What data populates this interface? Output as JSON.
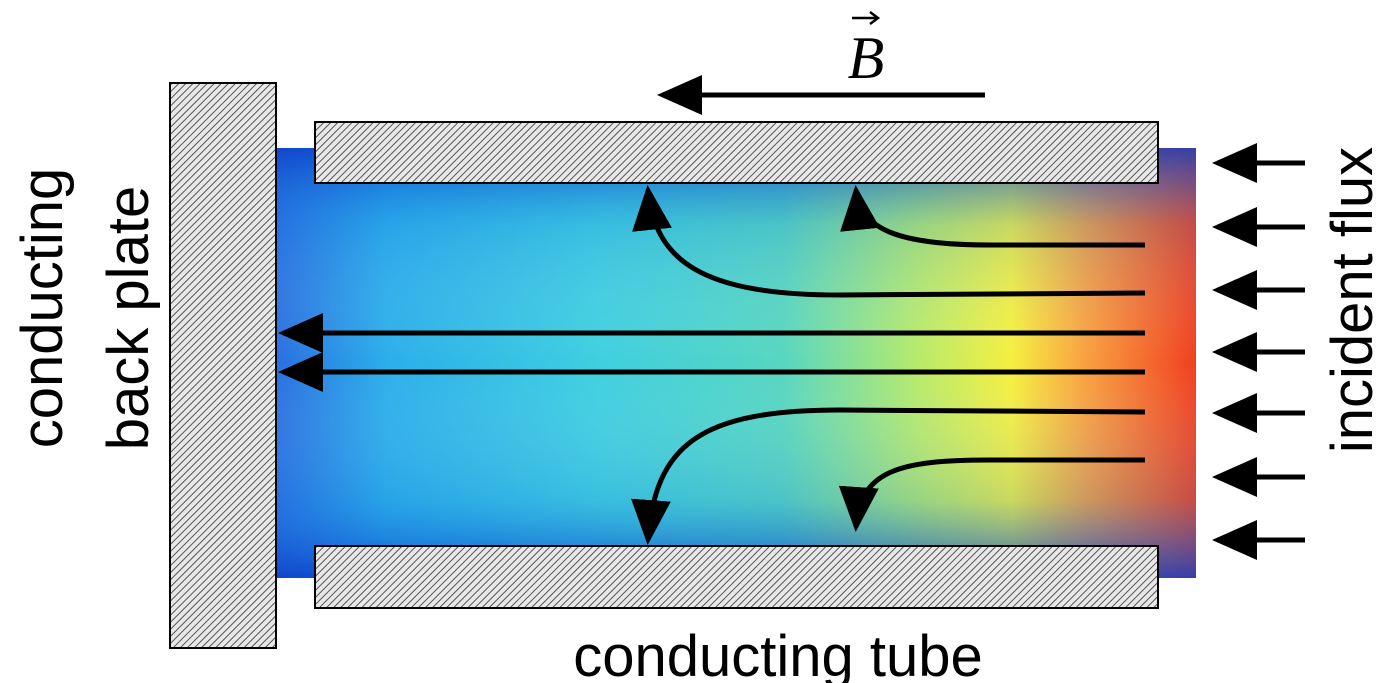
{
  "labels": {
    "left_line1": "conducting",
    "left_line2": "back plate",
    "field": "B",
    "right": "incident flux",
    "bottom": "conducting tube"
  }
}
